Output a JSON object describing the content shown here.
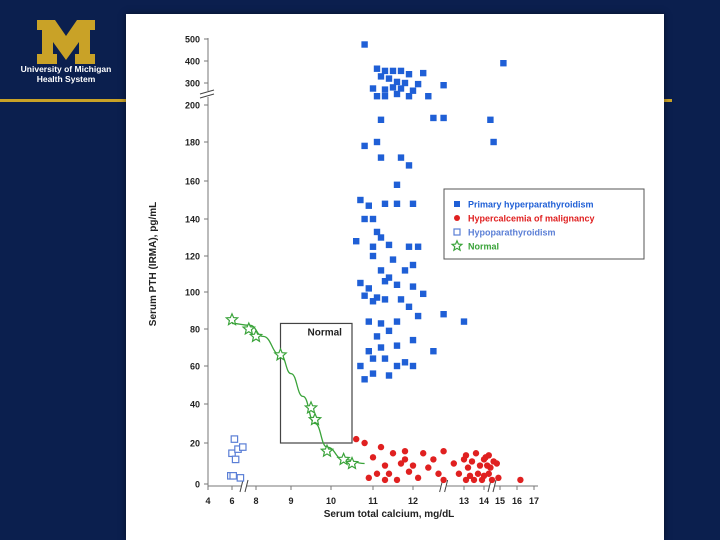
{
  "header": {
    "logo_line1": "University of Michigan",
    "logo_line2": "Health System",
    "accent_color": "#c9a227",
    "background_color": "#0b1f4e"
  },
  "chart_data": {
    "type": "scatter",
    "xlabel": "Serum total calcium, mg/dL",
    "ylabel": "Serum PTH (IRMA), pg/mL",
    "x_ticks": [
      "4",
      "6",
      "8",
      "9",
      "10",
      "11",
      "12",
      "13",
      "14",
      "15",
      "16",
      "17"
    ],
    "y_ticks": [
      "500",
      "400",
      "300",
      "200",
      "180",
      "160",
      "140",
      "120",
      "100",
      "80",
      "60",
      "40",
      "20",
      "0"
    ],
    "xlim": [
      4,
      17
    ],
    "ylim": [
      0,
      500
    ],
    "axis_breaks": [
      "x between 6 and 8",
      "x between 12 and 13",
      "x between 14 and 15",
      "y between 200 and 300"
    ],
    "legend_position": "right",
    "box_label": "Normal",
    "normal_box": {
      "x_range": [
        8.7,
        10.5
      ],
      "y_range": [
        20,
        83
      ]
    },
    "series": [
      {
        "name": "Primary hyperparathyroidism",
        "marker": "filled-square",
        "color": "#1f5fd6",
        "points": [
          [
            10.8,
            475
          ],
          [
            15.2,
            390
          ],
          [
            11.1,
            365
          ],
          [
            11.3,
            355
          ],
          [
            11.5,
            355
          ],
          [
            11.7,
            355
          ],
          [
            12.2,
            345
          ],
          [
            11.9,
            340
          ],
          [
            11.2,
            330
          ],
          [
            11.4,
            320
          ],
          [
            11.6,
            305
          ],
          [
            11.8,
            300
          ],
          [
            12.1,
            295
          ],
          [
            12.6,
            290
          ],
          [
            11.0,
            275
          ],
          [
            11.3,
            270
          ],
          [
            11.5,
            280
          ],
          [
            11.7,
            275
          ],
          [
            12.0,
            265
          ],
          [
            11.1,
            240
          ],
          [
            11.3,
            240
          ],
          [
            11.6,
            250
          ],
          [
            11.9,
            240
          ],
          [
            12.3,
            240
          ],
          [
            14.4,
            192
          ],
          [
            14.6,
            180
          ],
          [
            11.2,
            192
          ],
          [
            12.4,
            193
          ],
          [
            12.6,
            193
          ],
          [
            11.1,
            180
          ],
          [
            10.8,
            178
          ],
          [
            11.2,
            172
          ],
          [
            11.7,
            172
          ],
          [
            11.9,
            168
          ],
          [
            11.6,
            158
          ],
          [
            10.7,
            150
          ],
          [
            10.9,
            147
          ],
          [
            11.0,
            140
          ],
          [
            11.3,
            148
          ],
          [
            11.6,
            148
          ],
          [
            12.0,
            148
          ],
          [
            10.8,
            140
          ],
          [
            11.1,
            133
          ],
          [
            11.2,
            130
          ],
          [
            10.6,
            128
          ],
          [
            11.0,
            125
          ],
          [
            11.4,
            126
          ],
          [
            11.9,
            125
          ],
          [
            12.1,
            125
          ],
          [
            11.0,
            120
          ],
          [
            11.2,
            112
          ],
          [
            11.5,
            118
          ],
          [
            11.8,
            112
          ],
          [
            12.0,
            115
          ],
          [
            11.3,
            106
          ],
          [
            11.4,
            108
          ],
          [
            10.7,
            105
          ],
          [
            10.9,
            102
          ],
          [
            11.1,
            97
          ],
          [
            11.6,
            104
          ],
          [
            12.0,
            103
          ],
          [
            12.2,
            99
          ],
          [
            10.8,
            98
          ],
          [
            11.0,
            95
          ],
          [
            11.3,
            96
          ],
          [
            11.7,
            96
          ],
          [
            11.9,
            92
          ],
          [
            12.1,
            87
          ],
          [
            12.6,
            88
          ],
          [
            13.0,
            84
          ],
          [
            10.9,
            84
          ],
          [
            11.2,
            83
          ],
          [
            11.6,
            84
          ],
          [
            11.4,
            79
          ],
          [
            11.1,
            76
          ],
          [
            12.0,
            74
          ],
          [
            11.2,
            70
          ],
          [
            11.6,
            71
          ],
          [
            12.4,
            68
          ],
          [
            10.9,
            68
          ],
          [
            11.0,
            64
          ],
          [
            11.3,
            64
          ],
          [
            11.8,
            62
          ],
          [
            12.0,
            60
          ],
          [
            11.6,
            60
          ],
          [
            10.7,
            60
          ],
          [
            10.8,
            53
          ],
          [
            11.0,
            56
          ],
          [
            11.4,
            55
          ]
        ]
      },
      {
        "name": "Hypercalcemia of malignancy",
        "marker": "filled-circle",
        "color": "#e02020",
        "points": [
          [
            10.6,
            22
          ],
          [
            10.8,
            20
          ],
          [
            11.2,
            18
          ],
          [
            11.5,
            15
          ],
          [
            11.8,
            16
          ],
          [
            12.2,
            15
          ],
          [
            12.6,
            16
          ],
          [
            13.1,
            14
          ],
          [
            13.6,
            15
          ],
          [
            14.1,
            13
          ],
          [
            14.3,
            14
          ],
          [
            14.6,
            11
          ],
          [
            11.0,
            13
          ],
          [
            11.3,
            9
          ],
          [
            11.7,
            10
          ],
          [
            12.0,
            9
          ],
          [
            12.3,
            8
          ],
          [
            12.8,
            10
          ],
          [
            13.2,
            8
          ],
          [
            13.4,
            11
          ],
          [
            13.8,
            9
          ],
          [
            14.2,
            9
          ],
          [
            14.4,
            8
          ],
          [
            14.8,
            10
          ],
          [
            11.1,
            5
          ],
          [
            11.4,
            5
          ],
          [
            11.9,
            6
          ],
          [
            12.5,
            5
          ],
          [
            12.9,
            5
          ],
          [
            13.3,
            4
          ],
          [
            13.7,
            5
          ],
          [
            14.0,
            4
          ],
          [
            14.3,
            5
          ],
          [
            14.9,
            3
          ],
          [
            10.9,
            3
          ],
          [
            11.3,
            2
          ],
          [
            11.6,
            2
          ],
          [
            12.1,
            3
          ],
          [
            12.6,
            2
          ],
          [
            13.1,
            2
          ],
          [
            13.5,
            2
          ],
          [
            13.9,
            2
          ],
          [
            14.5,
            2
          ],
          [
            16.2,
            2
          ],
          [
            11.8,
            12
          ],
          [
            12.4,
            12
          ],
          [
            13.0,
            12
          ],
          [
            14.0,
            12
          ]
        ]
      },
      {
        "name": "Hypoparathyroidism",
        "marker": "open-square",
        "color": "#5b7fd6",
        "points": [
          [
            6.2,
            22
          ],
          [
            6.0,
            15
          ],
          [
            6.5,
            17
          ],
          [
            6.9,
            18
          ],
          [
            6.3,
            12
          ],
          [
            5.9,
            4
          ],
          [
            6.1,
            4
          ],
          [
            6.7,
            3
          ]
        ]
      },
      {
        "name": "Normal",
        "marker": "open-star",
        "color": "#3aa33a",
        "points": [
          [
            6.0,
            85
          ],
          [
            7.4,
            80
          ],
          [
            8.0,
            76
          ],
          [
            8.7,
            66
          ],
          [
            9.5,
            38
          ],
          [
            9.6,
            32
          ],
          [
            9.9,
            16
          ],
          [
            10.3,
            12
          ],
          [
            10.5,
            10
          ]
        ],
        "fit_line": [
          [
            6.0,
            83
          ],
          [
            7.5,
            82
          ],
          [
            8.2,
            76
          ],
          [
            8.7,
            66
          ],
          [
            9.0,
            56
          ],
          [
            9.3,
            44
          ],
          [
            9.6,
            30
          ],
          [
            9.9,
            18
          ],
          [
            10.3,
            12
          ],
          [
            10.8,
            10
          ]
        ]
      }
    ]
  }
}
